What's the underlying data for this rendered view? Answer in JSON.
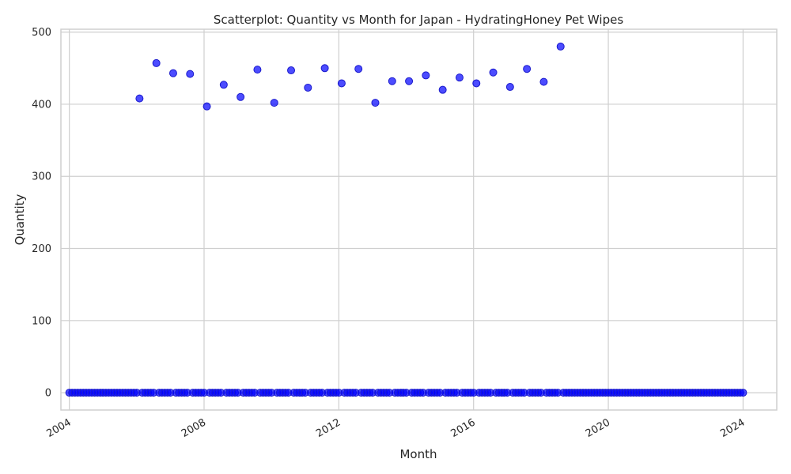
{
  "chart_data": {
    "type": "scatter",
    "title": "Scatterplot: Quantity vs Month for Japan - HydratingHoney Pet Wipes",
    "xlabel": "Month",
    "ylabel": "Quantity",
    "x_ticks": [
      "2004",
      "2008",
      "2012",
      "2016",
      "2020",
      "2024"
    ],
    "y_ticks": [
      0,
      100,
      200,
      300,
      400,
      500
    ],
    "xlim": [
      "2003-10",
      "2025-01"
    ],
    "ylim": [
      -24,
      504
    ],
    "grid": true,
    "marker_color": "#0000ff",
    "series": [
      {
        "x": [
          "2004-01",
          "2004-02",
          "2004-03",
          "2004-04",
          "2004-05",
          "2004-06",
          "2004-07",
          "2004-08",
          "2004-09",
          "2004-10",
          "2004-11",
          "2004-12",
          "2005-01",
          "2005-02",
          "2005-03",
          "2005-04",
          "2005-05",
          "2005-06",
          "2005-07",
          "2005-08",
          "2005-09",
          "2005-10",
          "2005-11",
          "2005-12",
          "2006-01",
          "2006-02",
          "2006-03",
          "2006-04",
          "2006-05",
          "2006-06",
          "2006-07",
          "2006-08",
          "2006-09",
          "2006-10",
          "2006-11",
          "2006-12",
          "2007-01",
          "2007-02",
          "2007-03",
          "2007-04",
          "2007-05",
          "2007-06",
          "2007-07",
          "2007-08",
          "2007-09",
          "2007-10",
          "2007-11",
          "2007-12",
          "2008-01",
          "2008-02",
          "2008-03",
          "2008-04",
          "2008-05",
          "2008-06",
          "2008-07",
          "2008-08",
          "2008-09",
          "2008-10",
          "2008-11",
          "2008-12",
          "2009-01",
          "2009-02",
          "2009-03",
          "2009-04",
          "2009-05",
          "2009-06",
          "2009-07",
          "2009-08",
          "2009-09",
          "2009-10",
          "2009-11",
          "2009-12",
          "2010-01",
          "2010-02",
          "2010-03",
          "2010-04",
          "2010-05",
          "2010-06",
          "2010-07",
          "2010-08",
          "2010-09",
          "2010-10",
          "2010-11",
          "2010-12",
          "2011-01",
          "2011-02",
          "2011-03",
          "2011-04",
          "2011-05",
          "2011-06",
          "2011-07",
          "2011-08",
          "2011-09",
          "2011-10",
          "2011-11",
          "2011-12",
          "2012-01",
          "2012-02",
          "2012-03",
          "2012-04",
          "2012-05",
          "2012-06",
          "2012-07",
          "2012-08",
          "2012-09",
          "2012-10",
          "2012-11",
          "2012-12",
          "2013-01",
          "2013-02",
          "2013-03",
          "2013-04",
          "2013-05",
          "2013-06",
          "2013-07",
          "2013-08",
          "2013-09",
          "2013-10",
          "2013-11",
          "2013-12",
          "2014-01",
          "2014-02",
          "2014-03",
          "2014-04",
          "2014-05",
          "2014-06",
          "2014-07",
          "2014-08",
          "2014-09",
          "2014-10",
          "2014-11",
          "2014-12",
          "2015-01",
          "2015-02",
          "2015-03",
          "2015-04",
          "2015-05",
          "2015-06",
          "2015-07",
          "2015-08",
          "2015-09",
          "2015-10",
          "2015-11",
          "2015-12",
          "2016-01",
          "2016-02",
          "2016-03",
          "2016-04",
          "2016-05",
          "2016-06",
          "2016-07",
          "2016-08",
          "2016-09",
          "2016-10",
          "2016-11",
          "2016-12",
          "2017-01",
          "2017-02",
          "2017-03",
          "2017-04",
          "2017-05",
          "2017-06",
          "2017-07",
          "2017-08",
          "2017-09",
          "2017-10",
          "2017-11",
          "2017-12",
          "2018-01",
          "2018-02",
          "2018-03",
          "2018-04",
          "2018-05",
          "2018-06",
          "2018-07",
          "2018-08",
          "2018-09",
          "2018-10",
          "2018-11",
          "2018-12",
          "2019-01",
          "2019-02",
          "2019-03",
          "2019-04",
          "2019-05",
          "2019-06",
          "2019-07",
          "2019-08",
          "2019-09",
          "2019-10",
          "2019-11",
          "2019-12",
          "2020-01",
          "2020-02",
          "2020-03",
          "2020-04",
          "2020-05",
          "2020-06",
          "2020-07",
          "2020-08",
          "2020-09",
          "2020-10",
          "2020-11",
          "2020-12",
          "2021-01",
          "2021-02",
          "2021-03",
          "2021-04",
          "2021-05",
          "2021-06",
          "2021-07",
          "2021-08",
          "2021-09",
          "2021-10",
          "2021-11",
          "2021-12",
          "2022-01",
          "2022-02",
          "2022-03",
          "2022-04",
          "2022-05",
          "2022-06",
          "2022-07",
          "2022-08",
          "2022-09",
          "2022-10",
          "2022-11",
          "2022-12",
          "2023-01",
          "2023-02",
          "2023-03",
          "2023-04",
          "2023-05",
          "2023-06",
          "2023-07",
          "2023-08",
          "2023-09",
          "2023-10",
          "2023-11",
          "2023-12",
          "2024-01"
        ],
        "y": [
          0,
          0,
          0,
          0,
          0,
          0,
          0,
          0,
          0,
          0,
          0,
          0,
          0,
          0,
          0,
          0,
          0,
          0,
          0,
          0,
          0,
          0,
          0,
          0,
          0,
          408,
          0,
          0,
          0,
          0,
          0,
          457,
          0,
          0,
          0,
          0,
          0,
          443,
          0,
          0,
          0,
          0,
          0,
          442,
          0,
          0,
          0,
          0,
          0,
          397,
          0,
          0,
          0,
          0,
          0,
          427,
          0,
          0,
          0,
          0,
          0,
          410,
          0,
          0,
          0,
          0,
          0,
          448,
          0,
          0,
          0,
          0,
          0,
          402,
          0,
          0,
          0,
          0,
          0,
          447,
          0,
          0,
          0,
          0,
          0,
          423,
          0,
          0,
          0,
          0,
          0,
          450,
          0,
          0,
          0,
          0,
          0,
          429,
          0,
          0,
          0,
          0,
          0,
          449,
          0,
          0,
          0,
          0,
          0,
          402,
          0,
          0,
          0,
          0,
          0,
          432,
          0,
          0,
          0,
          0,
          0,
          432,
          0,
          0,
          0,
          0,
          0,
          440,
          0,
          0,
          0,
          0,
          0,
          420,
          0,
          0,
          0,
          0,
          0,
          437,
          0,
          0,
          0,
          0,
          0,
          429,
          0,
          0,
          0,
          0,
          0,
          444,
          0,
          0,
          0,
          0,
          0,
          424,
          0,
          0,
          0,
          0,
          0,
          449,
          0,
          0,
          0,
          0,
          0,
          431,
          0,
          0,
          0,
          0,
          0,
          480,
          0,
          0,
          0,
          0,
          0,
          0,
          0,
          0,
          0,
          0,
          0,
          0,
          0,
          0,
          0,
          0,
          0,
          0,
          0,
          0,
          0,
          0,
          0,
          0,
          0,
          0,
          0,
          0,
          0,
          0,
          0,
          0,
          0,
          0,
          0,
          0,
          0,
          0,
          0,
          0,
          0,
          0,
          0,
          0,
          0,
          0,
          0,
          0,
          0,
          0,
          0,
          0,
          0,
          0,
          0,
          0,
          0,
          0,
          0,
          0,
          0,
          0,
          0,
          0,
          0
        ]
      }
    ]
  }
}
